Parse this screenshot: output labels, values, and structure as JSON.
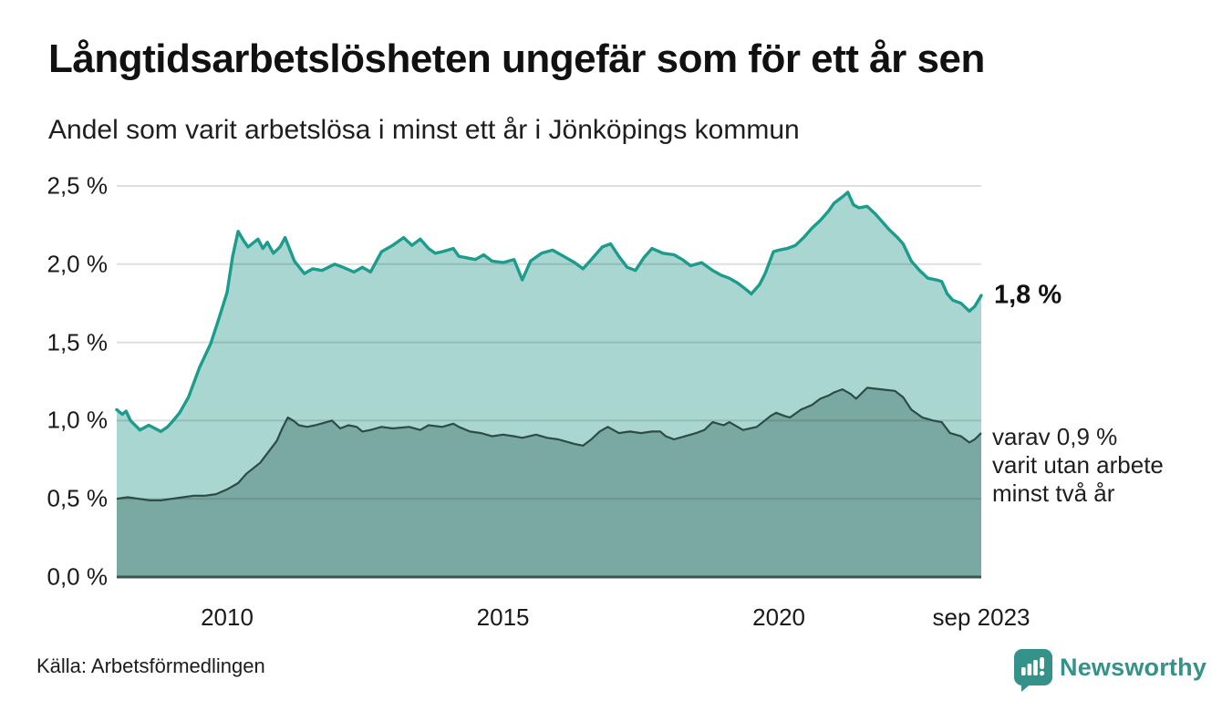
{
  "title": "Långtidsarbetslösheten ungefär som för ett år sen",
  "subtitle": "Andel som varit arbetslösa i minst ett år i Jönköpings kommun",
  "source": "Källa: Arbetsförmedlingen",
  "branding": {
    "name": "Newsworthy",
    "color": "#35928b"
  },
  "annotations": {
    "series1_end": "1,8 %",
    "series2_end": "varav 0,9 %\nvarit utan arbete\nminst två år"
  },
  "chart_data": {
    "type": "area",
    "title": "Långtidsarbetslösheten ungefär som för ett år sen",
    "subtitle": "Andel som varit arbetslösa i minst ett år i Jönköpings kommun",
    "unit": "%",
    "grid": true,
    "legend_position": "line-end-annotations",
    "x_range": [
      2008.0,
      2023.667
    ],
    "ylim": [
      0,
      2.5
    ],
    "yticks": [
      {
        "value": 0.0,
        "label": "0,0 %"
      },
      {
        "value": 0.5,
        "label": "0,5 %"
      },
      {
        "value": 1.0,
        "label": "1,0 %"
      },
      {
        "value": 1.5,
        "label": "1,5 %"
      },
      {
        "value": 2.0,
        "label": "2,0 %"
      },
      {
        "value": 2.5,
        "label": "2,5 %"
      }
    ],
    "xticks": [
      {
        "value": 2010,
        "label": "2010"
      },
      {
        "value": 2015,
        "label": "2015"
      },
      {
        "value": 2020,
        "label": "2020"
      },
      {
        "value": 2023.667,
        "label": "sep 2023"
      }
    ],
    "series": [
      {
        "name": "Andel arbetslösa minst ett år",
        "color": "#1b9c8c",
        "fill": "#a9d6d0",
        "end_value": 1.8,
        "end_label": "1,8 %",
        "points": [
          [
            2008.0,
            1.07
          ],
          [
            2008.1,
            1.04
          ],
          [
            2008.17,
            1.06
          ],
          [
            2008.25,
            1.0
          ],
          [
            2008.42,
            0.94
          ],
          [
            2008.58,
            0.97
          ],
          [
            2008.8,
            0.93
          ],
          [
            2008.92,
            0.96
          ],
          [
            2009.0,
            0.99
          ],
          [
            2009.14,
            1.05
          ],
          [
            2009.3,
            1.15
          ],
          [
            2009.5,
            1.34
          ],
          [
            2009.7,
            1.49
          ],
          [
            2009.85,
            1.65
          ],
          [
            2010.0,
            1.82
          ],
          [
            2010.1,
            2.05
          ],
          [
            2010.2,
            2.21
          ],
          [
            2010.3,
            2.15
          ],
          [
            2010.38,
            2.11
          ],
          [
            2010.56,
            2.16
          ],
          [
            2010.65,
            2.1
          ],
          [
            2010.73,
            2.14
          ],
          [
            2010.84,
            2.07
          ],
          [
            2010.96,
            2.11
          ],
          [
            2011.05,
            2.17
          ],
          [
            2011.22,
            2.02
          ],
          [
            2011.4,
            1.94
          ],
          [
            2011.55,
            1.97
          ],
          [
            2011.72,
            1.96
          ],
          [
            2011.95,
            2.0
          ],
          [
            2012.1,
            1.98
          ],
          [
            2012.3,
            1.95
          ],
          [
            2012.45,
            1.98
          ],
          [
            2012.6,
            1.95
          ],
          [
            2012.8,
            2.08
          ],
          [
            2013.0,
            2.12
          ],
          [
            2013.2,
            2.17
          ],
          [
            2013.35,
            2.12
          ],
          [
            2013.5,
            2.16
          ],
          [
            2013.65,
            2.1
          ],
          [
            2013.77,
            2.07
          ],
          [
            2013.9,
            2.08
          ],
          [
            2014.1,
            2.1
          ],
          [
            2014.2,
            2.05
          ],
          [
            2014.35,
            2.04
          ],
          [
            2014.5,
            2.03
          ],
          [
            2014.65,
            2.06
          ],
          [
            2014.8,
            2.02
          ],
          [
            2015.0,
            2.01
          ],
          [
            2015.2,
            2.03
          ],
          [
            2015.35,
            1.9
          ],
          [
            2015.5,
            2.02
          ],
          [
            2015.7,
            2.07
          ],
          [
            2015.9,
            2.09
          ],
          [
            2016.1,
            2.05
          ],
          [
            2016.3,
            2.01
          ],
          [
            2016.45,
            1.97
          ],
          [
            2016.6,
            2.03
          ],
          [
            2016.8,
            2.11
          ],
          [
            2016.95,
            2.13
          ],
          [
            2017.1,
            2.05
          ],
          [
            2017.25,
            1.98
          ],
          [
            2017.4,
            1.96
          ],
          [
            2017.55,
            2.04
          ],
          [
            2017.7,
            2.1
          ],
          [
            2017.9,
            2.07
          ],
          [
            2018.1,
            2.06
          ],
          [
            2018.25,
            2.03
          ],
          [
            2018.4,
            1.99
          ],
          [
            2018.6,
            2.01
          ],
          [
            2018.8,
            1.96
          ],
          [
            2018.95,
            1.93
          ],
          [
            2019.1,
            1.91
          ],
          [
            2019.25,
            1.88
          ],
          [
            2019.4,
            1.84
          ],
          [
            2019.5,
            1.81
          ],
          [
            2019.65,
            1.87
          ],
          [
            2019.75,
            1.94
          ],
          [
            2019.9,
            2.08
          ],
          [
            2020.0,
            2.09
          ],
          [
            2020.15,
            2.1
          ],
          [
            2020.3,
            2.12
          ],
          [
            2020.45,
            2.17
          ],
          [
            2020.6,
            2.23
          ],
          [
            2020.75,
            2.28
          ],
          [
            2020.9,
            2.34
          ],
          [
            2021.0,
            2.39
          ],
          [
            2021.15,
            2.43
          ],
          [
            2021.25,
            2.46
          ],
          [
            2021.35,
            2.38
          ],
          [
            2021.45,
            2.36
          ],
          [
            2021.6,
            2.37
          ],
          [
            2021.75,
            2.32
          ],
          [
            2021.85,
            2.28
          ],
          [
            2022.0,
            2.22
          ],
          [
            2022.15,
            2.17
          ],
          [
            2022.25,
            2.13
          ],
          [
            2022.4,
            2.02
          ],
          [
            2022.55,
            1.96
          ],
          [
            2022.7,
            1.91
          ],
          [
            2022.85,
            1.9
          ],
          [
            2022.95,
            1.89
          ],
          [
            2023.05,
            1.81
          ],
          [
            2023.15,
            1.77
          ],
          [
            2023.3,
            1.75
          ],
          [
            2023.45,
            1.7
          ],
          [
            2023.55,
            1.73
          ],
          [
            2023.667,
            1.8
          ]
        ]
      },
      {
        "name": "Andel arbetslösa minst två år",
        "color": "#2d4b47",
        "fill": "#7aa8a2",
        "end_value": 0.9,
        "end_label": "varav 0,9 % varit utan arbete minst två år",
        "points": [
          [
            2008.0,
            0.5
          ],
          [
            2008.2,
            0.51
          ],
          [
            2008.4,
            0.5
          ],
          [
            2008.6,
            0.49
          ],
          [
            2008.8,
            0.49
          ],
          [
            2009.0,
            0.5
          ],
          [
            2009.2,
            0.51
          ],
          [
            2009.4,
            0.52
          ],
          [
            2009.6,
            0.52
          ],
          [
            2009.8,
            0.53
          ],
          [
            2010.0,
            0.56
          ],
          [
            2010.2,
            0.6
          ],
          [
            2010.35,
            0.66
          ],
          [
            2010.6,
            0.73
          ],
          [
            2010.75,
            0.8
          ],
          [
            2010.9,
            0.87
          ],
          [
            2011.0,
            0.95
          ],
          [
            2011.1,
            1.02
          ],
          [
            2011.2,
            1.0
          ],
          [
            2011.3,
            0.97
          ],
          [
            2011.45,
            0.96
          ],
          [
            2011.6,
            0.97
          ],
          [
            2011.7,
            0.98
          ],
          [
            2011.9,
            1.0
          ],
          [
            2012.05,
            0.95
          ],
          [
            2012.2,
            0.97
          ],
          [
            2012.35,
            0.96
          ],
          [
            2012.45,
            0.93
          ],
          [
            2012.6,
            0.94
          ],
          [
            2012.8,
            0.96
          ],
          [
            2013.0,
            0.95
          ],
          [
            2013.3,
            0.96
          ],
          [
            2013.5,
            0.94
          ],
          [
            2013.65,
            0.97
          ],
          [
            2013.9,
            0.96
          ],
          [
            2014.1,
            0.98
          ],
          [
            2014.2,
            0.96
          ],
          [
            2014.4,
            0.93
          ],
          [
            2014.6,
            0.92
          ],
          [
            2014.8,
            0.9
          ],
          [
            2015.0,
            0.91
          ],
          [
            2015.2,
            0.9
          ],
          [
            2015.35,
            0.89
          ],
          [
            2015.6,
            0.91
          ],
          [
            2015.8,
            0.89
          ],
          [
            2016.0,
            0.88
          ],
          [
            2016.1,
            0.87
          ],
          [
            2016.3,
            0.85
          ],
          [
            2016.45,
            0.84
          ],
          [
            2016.6,
            0.88
          ],
          [
            2016.75,
            0.93
          ],
          [
            2016.9,
            0.96
          ],
          [
            2017.1,
            0.92
          ],
          [
            2017.3,
            0.93
          ],
          [
            2017.5,
            0.92
          ],
          [
            2017.7,
            0.93
          ],
          [
            2017.85,
            0.93
          ],
          [
            2017.95,
            0.9
          ],
          [
            2018.1,
            0.88
          ],
          [
            2018.3,
            0.9
          ],
          [
            2018.5,
            0.92
          ],
          [
            2018.65,
            0.94
          ],
          [
            2018.8,
            0.99
          ],
          [
            2019.0,
            0.97
          ],
          [
            2019.1,
            0.99
          ],
          [
            2019.35,
            0.94
          ],
          [
            2019.6,
            0.96
          ],
          [
            2019.85,
            1.03
          ],
          [
            2019.95,
            1.05
          ],
          [
            2020.1,
            1.03
          ],
          [
            2020.2,
            1.02
          ],
          [
            2020.4,
            1.07
          ],
          [
            2020.6,
            1.1
          ],
          [
            2020.75,
            1.14
          ],
          [
            2020.9,
            1.16
          ],
          [
            2021.0,
            1.18
          ],
          [
            2021.15,
            1.2
          ],
          [
            2021.3,
            1.17
          ],
          [
            2021.4,
            1.14
          ],
          [
            2021.6,
            1.21
          ],
          [
            2021.85,
            1.2
          ],
          [
            2022.1,
            1.19
          ],
          [
            2022.25,
            1.15
          ],
          [
            2022.4,
            1.07
          ],
          [
            2022.6,
            1.02
          ],
          [
            2022.8,
            1.0
          ],
          [
            2022.95,
            0.99
          ],
          [
            2023.1,
            0.92
          ],
          [
            2023.3,
            0.9
          ],
          [
            2023.45,
            0.86
          ],
          [
            2023.55,
            0.88
          ],
          [
            2023.667,
            0.92
          ]
        ]
      }
    ]
  }
}
